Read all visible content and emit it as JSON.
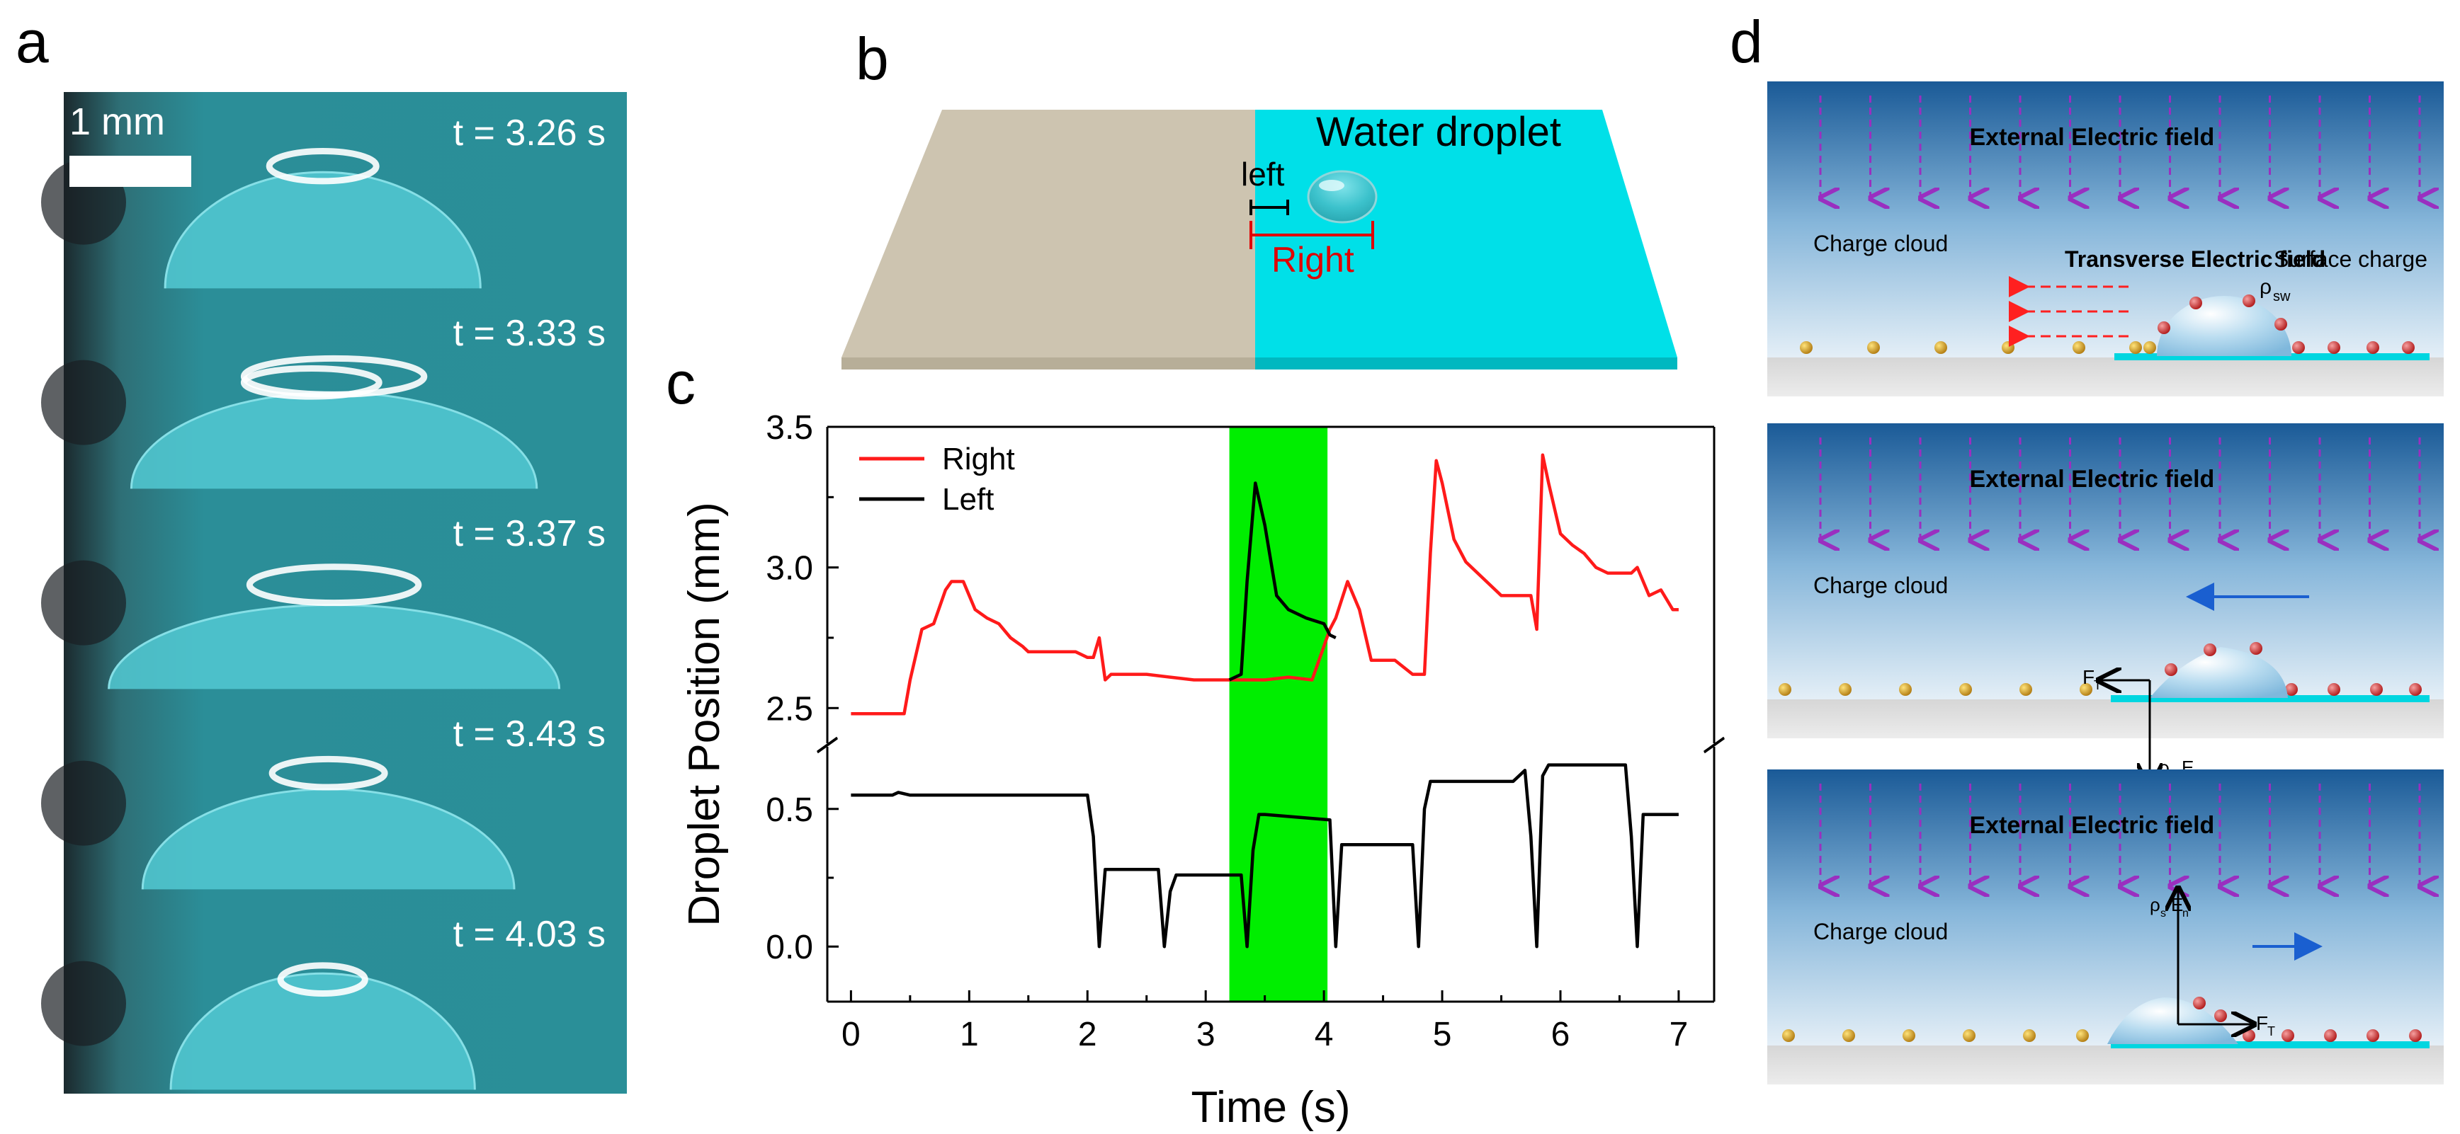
{
  "panels": {
    "a": {
      "letter": "a",
      "scale_label": "1 mm",
      "frames": [
        {
          "time": "t = 3.26 s"
        },
        {
          "time": "t = 3.33 s"
        },
        {
          "time": "t = 3.37 s"
        },
        {
          "time": "t = 3.43 s"
        },
        {
          "time": "t = 4.03 s"
        }
      ]
    },
    "b": {
      "letter": "b",
      "droplet_label": "Water droplet",
      "left_label": "left",
      "right_label": "Right"
    },
    "c": {
      "letter": "c"
    },
    "d": {
      "letter": "d",
      "subpanels": [
        {
          "field_label": "External Electric field",
          "cloud_label": "Charge cloud",
          "transverse_label": "Transverse Electric field",
          "surface_label": "Surface charge",
          "rho_sw": "ρ",
          "rho_sw_sub": "sw"
        },
        {
          "field_label": "External Electric field",
          "cloud_label": "Charge cloud",
          "force_label": "F",
          "force_sub": "T",
          "normal_label": "ρ",
          "normal_sub": "s",
          "normal_e": "E",
          "normal_e_sub": "n"
        },
        {
          "field_label": "External Electric field",
          "cloud_label": "Charge cloud",
          "force_label": "F",
          "force_sub": "T",
          "normal_label": "ρ",
          "normal_sub": "s",
          "normal_e": "E",
          "normal_e_sub": "n"
        }
      ]
    }
  },
  "colors": {
    "teal": "#2a8e98",
    "cyan": "#00e0e8",
    "substrate": "#cfc6b2",
    "right_line": "#ff1a1a",
    "left_line": "#000000",
    "highlight": "#00ee00",
    "field_arrow": "#9a2fc0"
  },
  "chart_data": {
    "type": "line",
    "title": "",
    "xlabel": "Time (s)",
    "ylabel": "Droplet Position (mm)",
    "xlim": [
      -0.2,
      7.3
    ],
    "x_ticks": [
      0,
      1,
      2,
      3,
      4,
      5,
      6,
      7
    ],
    "x_tick_labels": [
      "0",
      "1",
      "2",
      "3",
      "4",
      "5",
      "6",
      "7"
    ],
    "y_break": true,
    "upper_ylim": [
      2.4,
      3.5
    ],
    "upper_ticks": [
      2.5,
      3.0,
      3.5
    ],
    "upper_tick_labels": [
      "2.5",
      "3.0",
      "3.5"
    ],
    "lower_ylim": [
      -0.2,
      0.7
    ],
    "lower_ticks": [
      0.0,
      0.5
    ],
    "lower_tick_labels": [
      "0.0",
      "0.5"
    ],
    "highlight_range": [
      3.2,
      4.03
    ],
    "legend": [
      "Right",
      "Left"
    ],
    "legend_position": "top-left",
    "series": [
      {
        "name": "Right",
        "axis": "upper",
        "x": [
          0,
          0.45,
          0.5,
          0.6,
          0.7,
          0.8,
          0.85,
          0.95,
          1.05,
          1.15,
          1.25,
          1.35,
          1.45,
          1.5,
          1.7,
          1.9,
          2.0,
          2.05,
          2.1,
          2.15,
          2.2,
          2.3,
          2.5,
          2.7,
          2.9,
          3.1,
          3.3,
          3.5,
          3.7,
          3.9,
          4.05,
          4.1,
          4.2,
          4.3,
          4.4,
          4.5,
          4.6,
          4.75,
          4.8,
          4.85,
          4.9,
          4.95,
          5.0,
          5.1,
          5.2,
          5.3,
          5.5,
          5.7,
          5.75,
          5.8,
          5.85,
          5.9,
          6.0,
          6.1,
          6.2,
          6.3,
          6.4,
          6.55,
          6.6,
          6.65,
          6.75,
          6.85,
          6.95,
          7.0
        ],
        "values": [
          2.48,
          2.48,
          2.6,
          2.78,
          2.8,
          2.92,
          2.95,
          2.95,
          2.85,
          2.82,
          2.8,
          2.75,
          2.72,
          2.7,
          2.7,
          2.7,
          2.68,
          2.68,
          2.75,
          2.6,
          2.62,
          2.62,
          2.62,
          2.61,
          2.6,
          2.6,
          2.6,
          2.6,
          2.61,
          2.6,
          2.78,
          2.82,
          2.95,
          2.85,
          2.67,
          2.67,
          2.67,
          2.62,
          2.62,
          2.62,
          3.05,
          3.38,
          3.3,
          3.1,
          3.02,
          2.98,
          2.9,
          2.9,
          2.9,
          2.78,
          3.4,
          3.3,
          3.12,
          3.08,
          3.05,
          3.0,
          2.98,
          2.98,
          2.98,
          3.0,
          2.9,
          2.92,
          2.85,
          2.85
        ]
      },
      {
        "name": "Left",
        "axis": "upper",
        "x": [
          3.2,
          3.3,
          3.35,
          3.42,
          3.5,
          3.6,
          3.7,
          3.85,
          4.0,
          4.05,
          4.1
        ],
        "values": [
          2.6,
          2.62,
          2.95,
          3.3,
          3.15,
          2.9,
          2.85,
          2.82,
          2.8,
          2.76,
          2.75
        ]
      },
      {
        "name": "Left",
        "axis": "lower",
        "x": [
          0,
          0.35,
          0.4,
          0.5,
          2.0,
          2.05,
          2.1,
          2.15,
          2.6,
          2.65,
          2.7,
          2.75,
          3.3,
          3.35,
          3.4,
          3.45,
          3.5,
          4.05,
          4.1,
          4.15,
          4.25,
          4.75,
          4.8,
          4.85,
          4.9,
          4.95,
          5.0,
          5.6,
          5.7,
          5.75,
          5.8,
          5.85,
          5.9,
          6.1,
          6.5,
          6.55,
          6.6,
          6.65,
          6.7,
          6.75,
          7.0
        ],
        "values": [
          0.55,
          0.55,
          0.56,
          0.55,
          0.55,
          0.4,
          0.0,
          0.28,
          0.28,
          0.0,
          0.2,
          0.26,
          0.26,
          0.0,
          0.35,
          0.48,
          0.48,
          0.46,
          0.0,
          0.37,
          0.37,
          0.37,
          0.0,
          0.5,
          0.6,
          0.6,
          0.6,
          0.6,
          0.64,
          0.4,
          0.0,
          0.62,
          0.66,
          0.66,
          0.66,
          0.66,
          0.4,
          0.0,
          0.48,
          0.48,
          0.48
        ]
      }
    ]
  }
}
